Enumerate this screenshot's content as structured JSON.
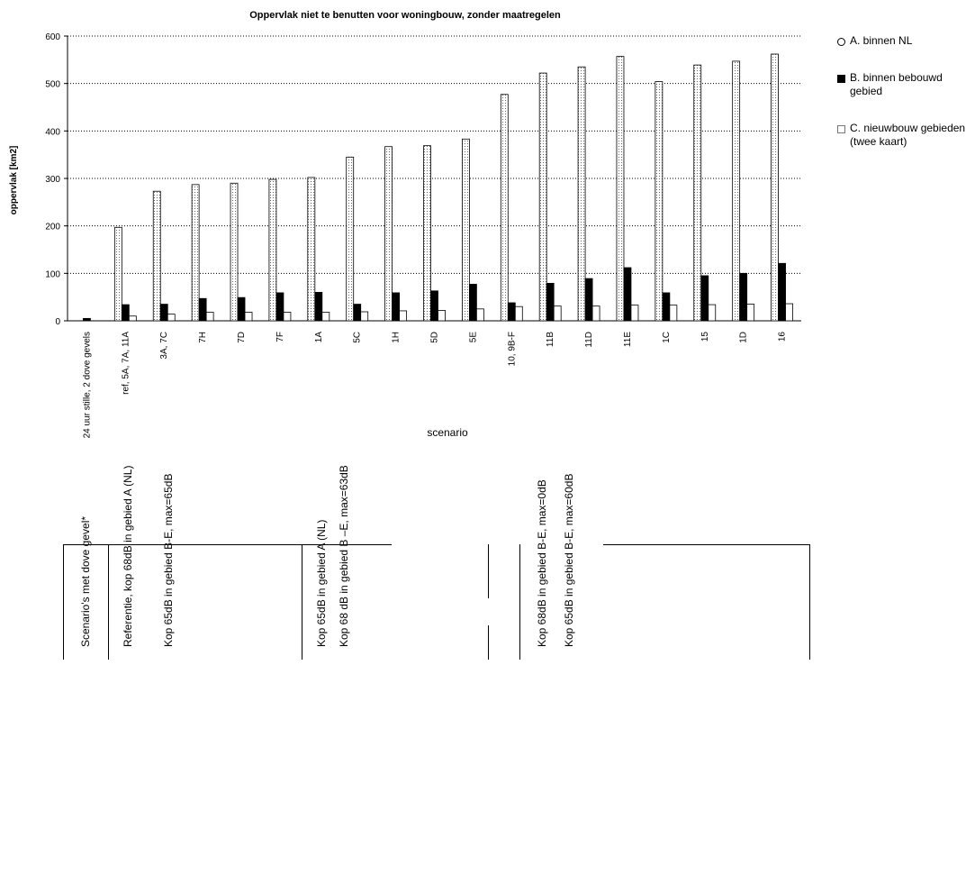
{
  "chart_data": {
    "type": "bar",
    "title": "Oppervlak niet te benutten voor woningbouw, zonder maatregelen",
    "xlabel": "scenario",
    "ylabel": "oppervlak [km2]",
    "ylim": [
      0,
      600
    ],
    "yticks": [
      0,
      100,
      200,
      300,
      400,
      500,
      600
    ],
    "grid": true,
    "legend_position": "right",
    "categories": [
      "24 uur stille, 2 dove gevels",
      "ref, 5A, 7A, 11A",
      "3A, 7C",
      "7H",
      "7D",
      "7F",
      "1A",
      "5C",
      "1H",
      "5D",
      "5E",
      "10, 9B-F",
      "11B",
      "11D",
      "11E",
      "1C",
      "15",
      "1D",
      "16"
    ],
    "series": [
      {
        "name": "A. binnen NL",
        "color": "#ffffff",
        "values": [
          0,
          197,
          273,
          287,
          290,
          298,
          302,
          345,
          367,
          369,
          383,
          477,
          522,
          535,
          557,
          504,
          539,
          547,
          562
        ]
      },
      {
        "name": "B. binnen bebouwd gebied",
        "color": "#000000",
        "values": [
          5,
          34,
          35,
          47,
          49,
          59,
          60,
          35,
          59,
          63,
          77,
          38,
          79,
          89,
          112,
          59,
          95,
          100,
          121
        ]
      },
      {
        "name": "C. nieuwbouw gebieden (twee kaart)",
        "color": "#ffffff",
        "values": [
          0,
          10,
          14,
          18,
          18,
          18,
          18,
          19,
          21,
          22,
          25,
          30,
          31,
          31,
          33,
          33,
          34,
          35,
          36
        ]
      }
    ]
  },
  "legend": {
    "a": "A. binnen NL",
    "b": "B. binnen bebouwd gebied",
    "c": "C. nieuwbouw gebieden (twee kaart)"
  },
  "notes": [
    "Scenario's met dove gevel*",
    "Referentie, kop 68dB in gebied A (NL)",
    "Kop 65dB in gebied B-E, max=65dB",
    "Kop 65dB in gebied A (NL)",
    "Kop 68 dB in gebied B –E, max=63dB",
    "Kop 68dB in gebied B-E, max=0dB",
    "Kop 65dB in gebied B-E, max=60dB"
  ]
}
